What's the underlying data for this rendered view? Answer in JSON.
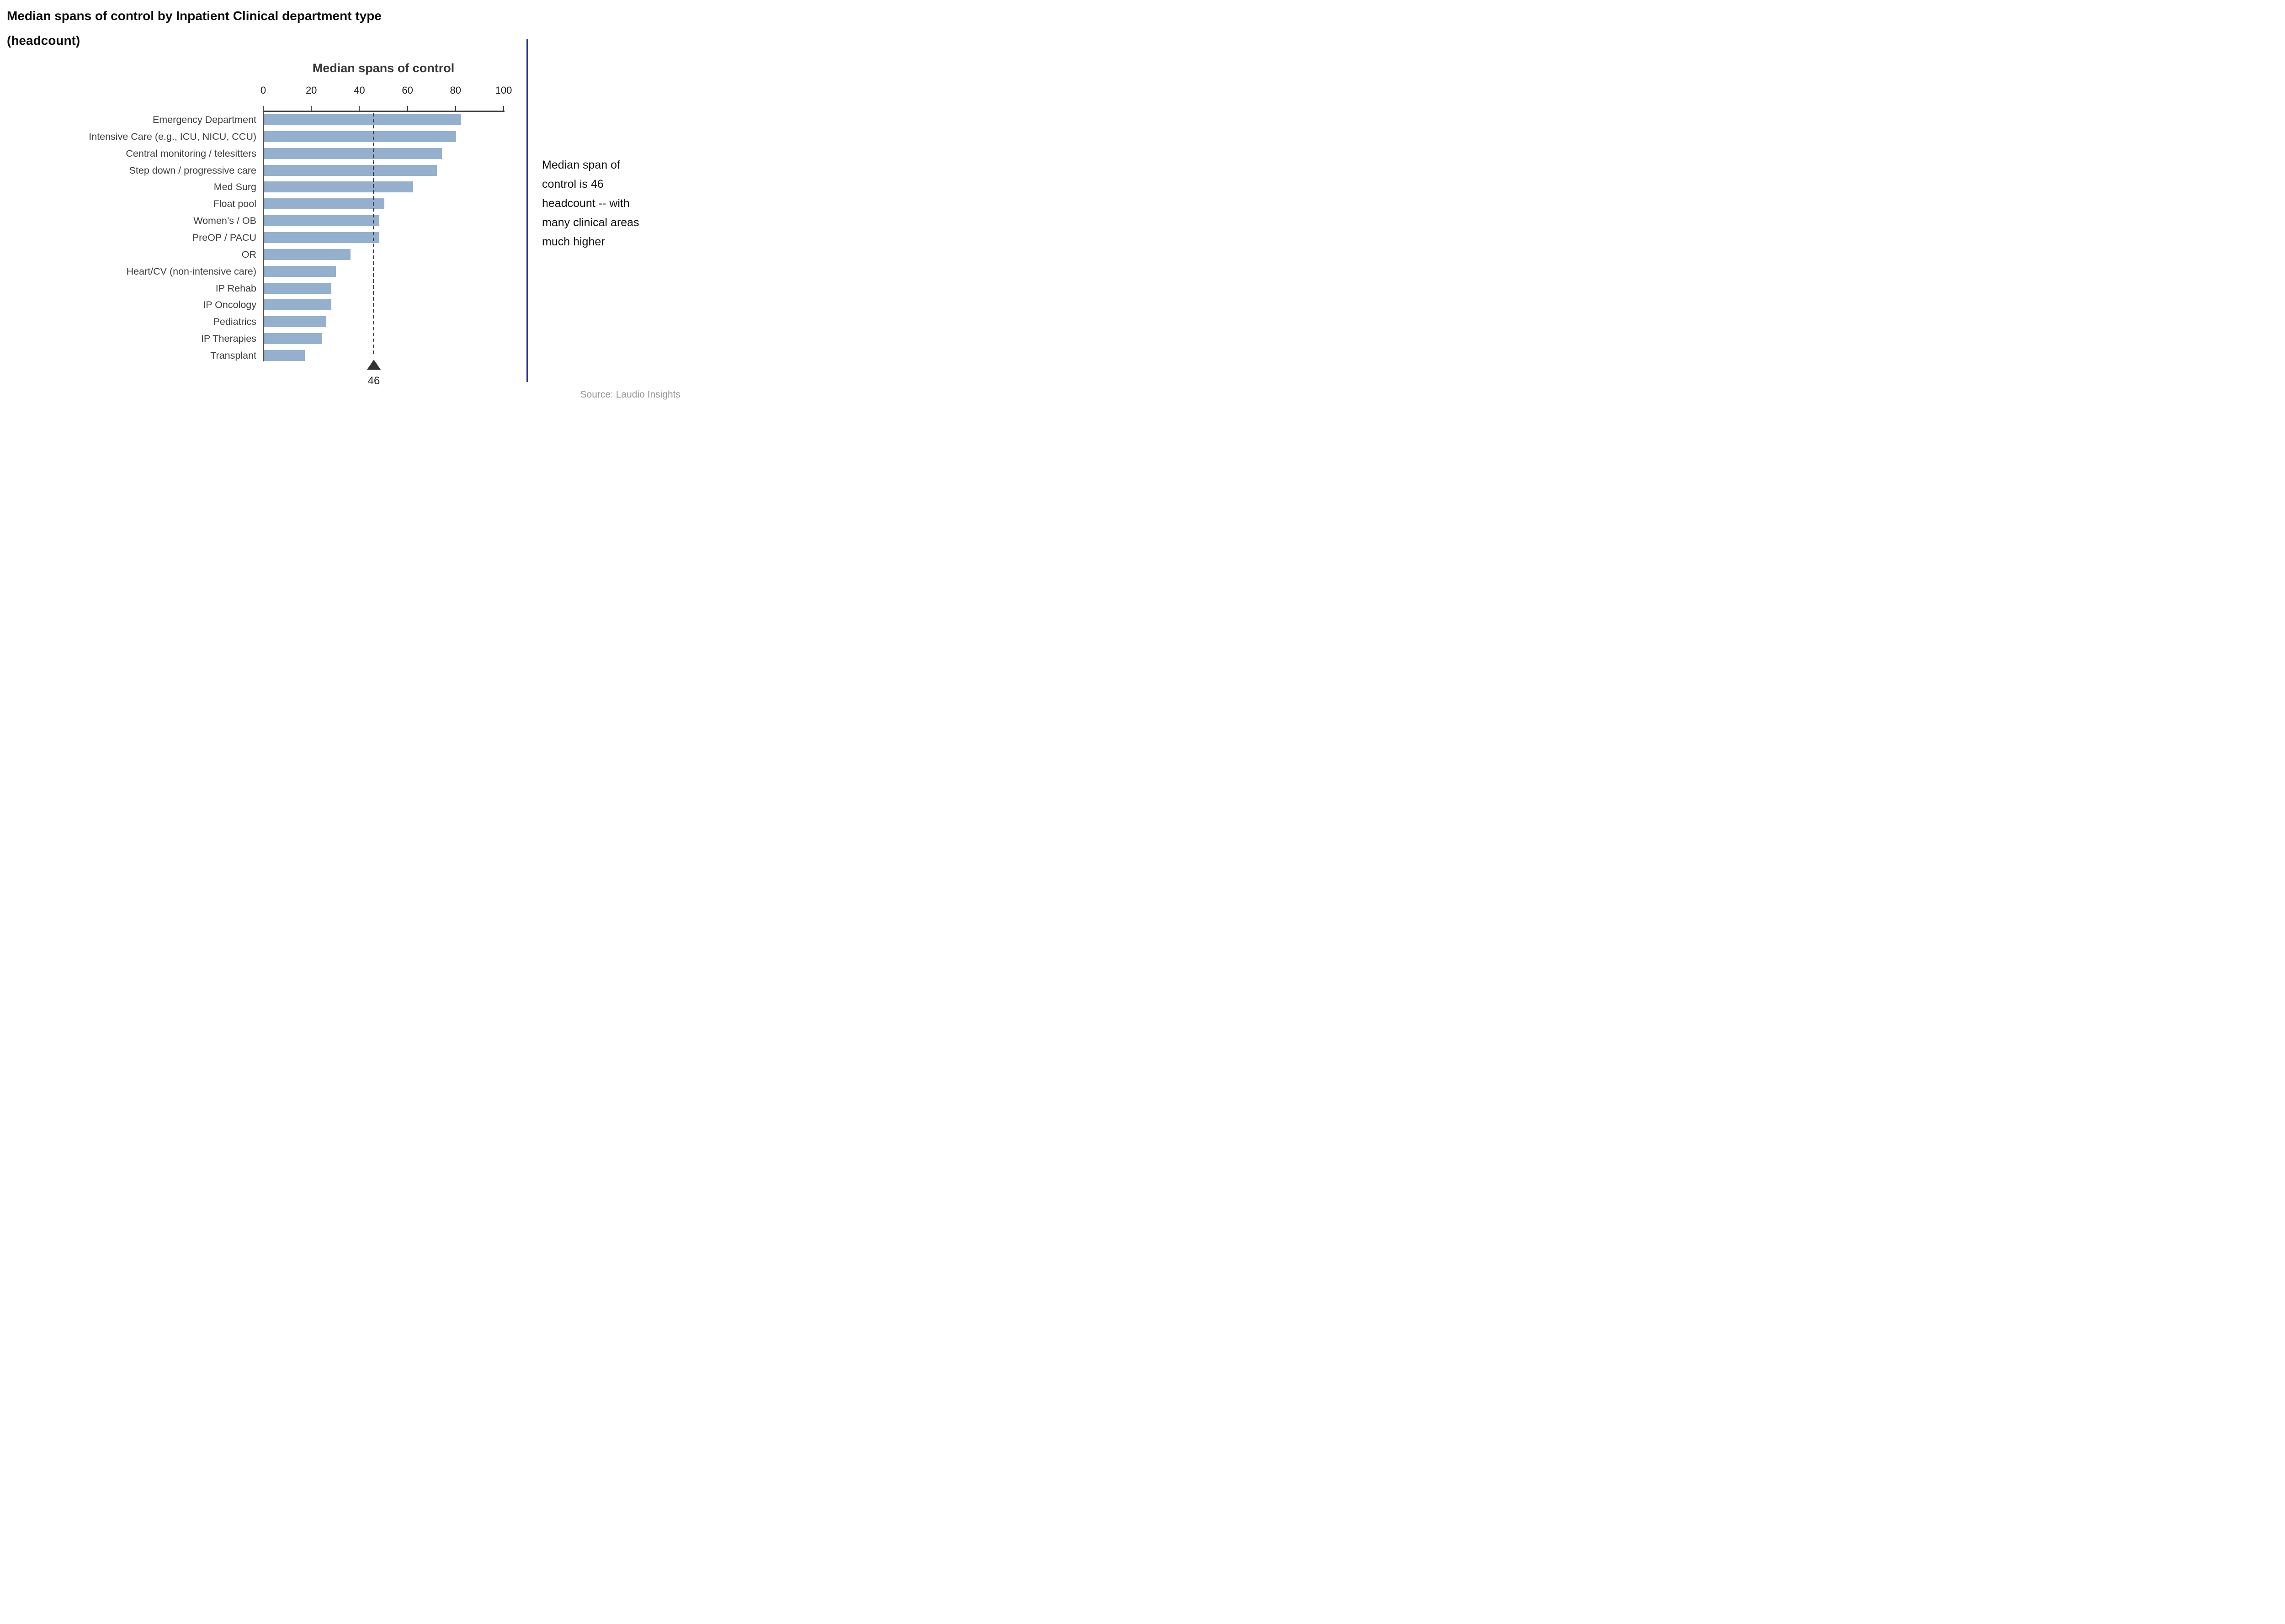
{
  "title": {
    "line1": "Median spans of control by Inpatient Clinical department type",
    "line2": "(headcount)"
  },
  "axis": {
    "title": "Median spans of control",
    "ticks": [
      0,
      20,
      40,
      60,
      80,
      100
    ],
    "max": 100
  },
  "chart_data": {
    "type": "bar",
    "orientation": "horizontal",
    "title": "Median spans of control",
    "categories": [
      "Emergency Department",
      "Intensive Care (e.g., ICU, NICU, CCU)",
      "Central monitoring / telesitters",
      "Step down / progressive care",
      "Med Surg",
      "Float pool",
      "Women’s / OB",
      "PreOP / PACU",
      "OR",
      "Heart/CV (non-intensive care)",
      "IP Rehab",
      "IP Oncology",
      "Pediatrics",
      "IP Therapies",
      "Transplant"
    ],
    "values": [
      82,
      80,
      74,
      72,
      62,
      50,
      48,
      48,
      36,
      30,
      28,
      28,
      26,
      24,
      17
    ],
    "xlabel": "Median spans of control",
    "ylabel": "",
    "xlim": [
      0,
      100
    ],
    "grid": false,
    "legend": false,
    "reference_line": {
      "value": 46,
      "label": "46"
    }
  },
  "annotation": {
    "lines": [
      "Median span of",
      "control is 46",
      "headcount -- with",
      "many clinical areas",
      "much higher"
    ]
  },
  "source": "Source: Laudio Insights",
  "colors": {
    "bar": "#94b0ce",
    "axis": "#404040",
    "reference": "#3a3a3a",
    "divider": "#2c3a94",
    "title_text": "#0d0d0d",
    "label_text": "#3d3d3d",
    "source_text": "#9a9495"
  }
}
